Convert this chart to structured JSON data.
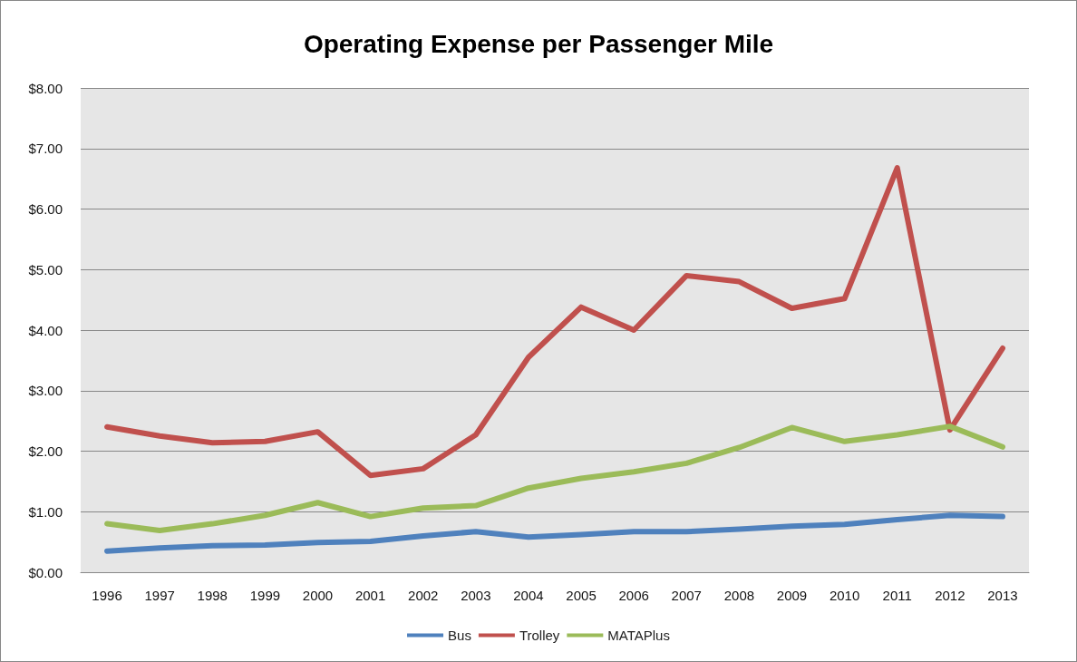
{
  "chart_data": {
    "type": "line",
    "title": "Operating Expense per Passenger Mile",
    "categories": [
      "1996",
      "1997",
      "1998",
      "1999",
      "2000",
      "2001",
      "2002",
      "2003",
      "2004",
      "2005",
      "2006",
      "2007",
      "2008",
      "2009",
      "2010",
      "2011",
      "2012",
      "2013"
    ],
    "series": [
      {
        "name": "Bus",
        "color": "#4f81bd",
        "values": [
          0.35,
          0.4,
          0.44,
          0.45,
          0.49,
          0.51,
          0.6,
          0.67,
          0.58,
          0.62,
          0.67,
          0.67,
          0.71,
          0.76,
          0.79,
          0.87,
          0.94,
          0.92
        ]
      },
      {
        "name": "Trolley",
        "color": "#c0504d",
        "values": [
          2.4,
          2.25,
          2.14,
          2.16,
          2.32,
          1.6,
          1.71,
          2.27,
          3.55,
          4.38,
          4.0,
          4.9,
          4.8,
          4.36,
          4.52,
          6.68,
          2.35,
          3.7
        ]
      },
      {
        "name": "MATAPlus",
        "color": "#9bbb59",
        "values": [
          0.8,
          0.69,
          0.8,
          0.94,
          1.15,
          0.92,
          1.06,
          1.1,
          1.39,
          1.55,
          1.66,
          1.8,
          2.06,
          2.39,
          2.16,
          2.27,
          2.41,
          2.07
        ]
      }
    ],
    "ylim": [
      0,
      8
    ],
    "yticks": [
      {
        "value": 0,
        "label": "$0.00"
      },
      {
        "value": 1,
        "label": "$1.00"
      },
      {
        "value": 2,
        "label": "$2.00"
      },
      {
        "value": 3,
        "label": "$3.00"
      },
      {
        "value": 4,
        "label": "$4.00"
      },
      {
        "value": 5,
        "label": "$5.00"
      },
      {
        "value": 6,
        "label": "$6.00"
      },
      {
        "value": 7,
        "label": "$7.00"
      },
      {
        "value": 8,
        "label": "$8.00"
      }
    ],
    "grid": "y",
    "legend": "bottom",
    "marker": "none",
    "line_style": "solid"
  }
}
